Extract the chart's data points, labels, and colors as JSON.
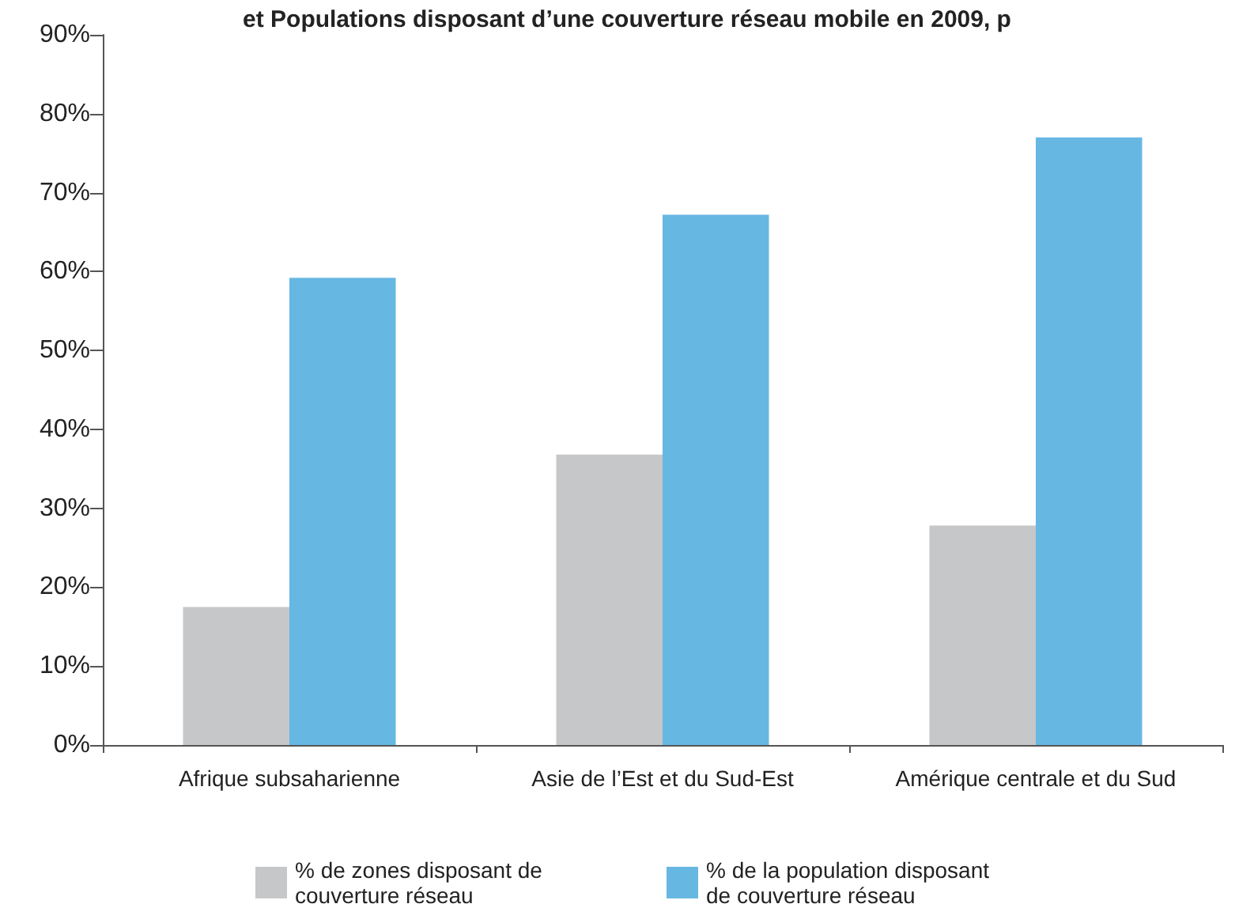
{
  "chart_data": {
    "type": "bar",
    "title": "et Populations disposant d’une couverture réseau mobile en 2009, p",
    "categories": [
      "Afrique subsaharienne",
      "Asie de l’Est et du Sud-Est",
      "Amérique centrale et du Sud"
    ],
    "series": [
      {
        "name": "% de zones disposant de couverture réseau",
        "color": "#c6c7c9",
        "values": [
          17.5,
          36.8,
          27.8
        ]
      },
      {
        "name": "% de la population disposant de couverture réseau",
        "color": "#67b7e3",
        "values": [
          59.2,
          67.2,
          77
        ]
      }
    ],
    "ylim": [
      0,
      90
    ],
    "yticks": [
      {
        "value": 0,
        "label": "0%"
      },
      {
        "value": 10,
        "label": "10%"
      },
      {
        "value": 20,
        "label": "20%"
      },
      {
        "value": 30,
        "label": "30%"
      },
      {
        "value": 40,
        "label": "40%"
      },
      {
        "value": 50,
        "label": "50%"
      },
      {
        "value": 60,
        "label": "60%"
      },
      {
        "value": 70,
        "label": "70%"
      },
      {
        "value": 80,
        "label": "80%"
      },
      {
        "value": 90,
        "label": "90%"
      }
    ],
    "grid": false,
    "legend": "bottom"
  }
}
